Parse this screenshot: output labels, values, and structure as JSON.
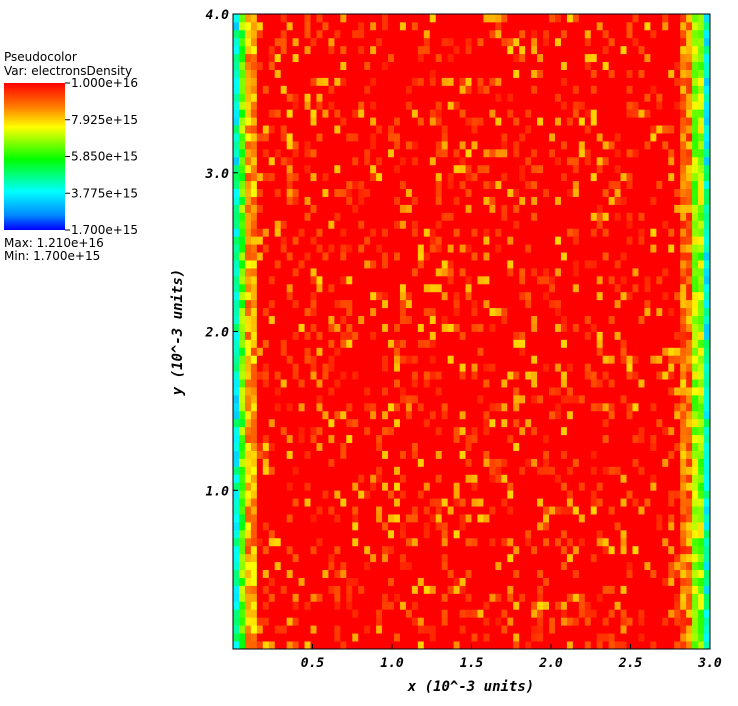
{
  "legend": {
    "plot_type": "Pseudocolor",
    "var_label": "Var: electronsDensity",
    "ticks": [
      "1.000e+16",
      "7.925e+15",
      "5.850e+15",
      "3.775e+15",
      "1.700e+15"
    ],
    "max_label": "Max:  1.210e+16",
    "min_label": "Min:  1.700e+15"
  },
  "chart_data": {
    "type": "heatmap",
    "title": "",
    "variable": "electronsDensity",
    "xlabel": "x (10^-3 units)",
    "ylabel": "y (10^-3 units)",
    "xlim": [
      0.0,
      3.0
    ],
    "ylim": [
      0.0,
      4.0
    ],
    "x_ticks": [
      "0.5",
      "1.0",
      "1.5",
      "2.0",
      "2.5",
      "3.0"
    ],
    "y_ticks": [
      "1.0",
      "2.0",
      "3.0",
      "4.0"
    ],
    "x_tick_values": [
      0.5,
      1.0,
      1.5,
      2.0,
      2.5,
      3.0
    ],
    "y_tick_values": [
      1.0,
      2.0,
      3.0,
      4.0
    ],
    "color_range": [
      1700000000000000.0,
      1e+16
    ],
    "colormap": "hot_desaturated_rainbow",
    "grid": false,
    "columns_profile": [
      {
        "x_from": 0.0,
        "x_to": 0.04,
        "level": 0.3
      },
      {
        "x_from": 0.04,
        "x_to": 0.09,
        "level": 0.55
      },
      {
        "x_from": 0.09,
        "x_to": 0.15,
        "level": 0.8
      },
      {
        "x_from": 0.15,
        "x_to": 2.82,
        "level": 0.98
      },
      {
        "x_from": 2.82,
        "x_to": 2.89,
        "level": 0.85
      },
      {
        "x_from": 2.89,
        "x_to": 2.95,
        "level": 0.62
      },
      {
        "x_from": 2.95,
        "x_to": 3.0,
        "level": 0.3
      }
    ]
  }
}
